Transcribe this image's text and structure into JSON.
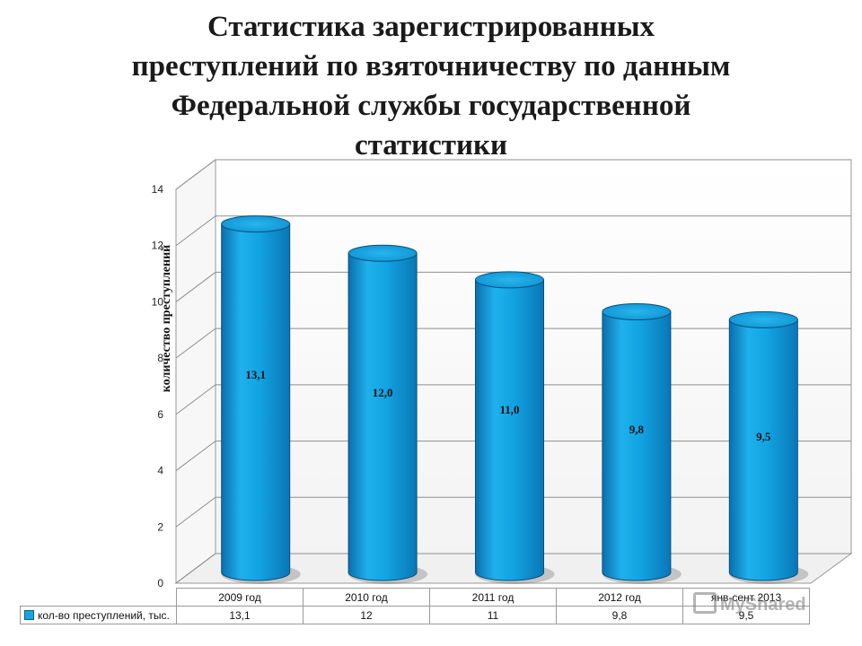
{
  "title_lines": [
    "Статистика зарегистрированных",
    "преступлений по взяточничеству по данным",
    "Федеральной службы государственной",
    "статистики"
  ],
  "chart_data": {
    "type": "bar",
    "style": "3d-cylinder",
    "title": "Статистика зарегистрированных преступлений по взяточничеству по данным Федеральной службы государственной статистики",
    "ylabel": "количество преступлений",
    "xlabel": "",
    "ylim": [
      0,
      14
    ],
    "yticks": [
      0,
      2,
      4,
      6,
      8,
      10,
      12,
      14
    ],
    "grid": true,
    "categories": [
      "2009 год",
      "2010 год",
      "2011 год",
      "2012 год",
      "янв-сент 2013"
    ],
    "series": [
      {
        "name": "кол-во преступлений, тыс.",
        "values": [
          13.1,
          12.0,
          11.0,
          9.8,
          9.5
        ],
        "data_labels": [
          "13,1",
          "12,0",
          "11,0",
          "9,8",
          "9,5"
        ],
        "table_values": [
          "13,1",
          "12",
          "11",
          "9,8",
          "9,5"
        ],
        "color": "#1aa3e0"
      }
    ],
    "legend": "data-table-bottom"
  },
  "watermark": {
    "text": "MyShared"
  }
}
